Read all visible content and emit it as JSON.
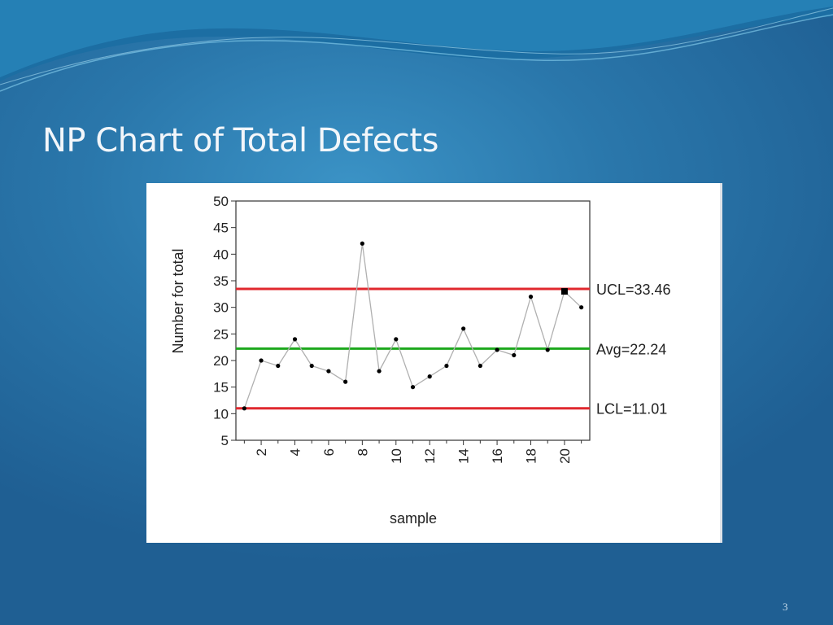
{
  "slide": {
    "title": "NP Chart of Total Defects",
    "page_number": "3"
  },
  "colors": {
    "background": "#2a77ab",
    "control_limit_line": "#e0282e",
    "center_line": "#1ea81e",
    "data_line": "#b0b0b0",
    "data_point": "#000000"
  },
  "chart_data": {
    "type": "line",
    "title": "",
    "xlabel": "sample",
    "ylabel": "Number for total",
    "xlim": [
      0.5,
      21.5
    ],
    "ylim": [
      5,
      50
    ],
    "x_ticks": [
      2,
      4,
      6,
      8,
      10,
      12,
      14,
      16,
      18,
      20
    ],
    "x_tick_labels": [
      "2",
      "4",
      "6",
      "8",
      "10",
      "12",
      "14",
      "16",
      "18",
      "20"
    ],
    "y_ticks": [
      5,
      10,
      15,
      20,
      25,
      30,
      35,
      40,
      45,
      50
    ],
    "y_tick_labels": [
      "5",
      "10",
      "15",
      "20",
      "25",
      "30",
      "35",
      "40",
      "45",
      "50"
    ],
    "grid": false,
    "series": [
      {
        "x": [
          1,
          2,
          3,
          4,
          5,
          6,
          7,
          8,
          9,
          10,
          11,
          12,
          13,
          14,
          15,
          16,
          17,
          18,
          19,
          20,
          21
        ],
        "values": [
          11,
          20,
          19,
          24,
          19,
          18,
          16,
          42,
          18,
          24,
          15,
          17,
          19,
          26,
          19,
          22,
          21,
          32,
          22,
          33,
          30
        ]
      }
    ],
    "reference_lines": [
      {
        "label": "UCL=33.46",
        "value": 33.46,
        "color": "#e0282e"
      },
      {
        "label": "Avg=22.24",
        "value": 22.24,
        "color": "#1ea81e"
      },
      {
        "label": "LCL=11.01",
        "value": 11.01,
        "color": "#e0282e"
      }
    ],
    "flagged_points": [
      20
    ]
  }
}
